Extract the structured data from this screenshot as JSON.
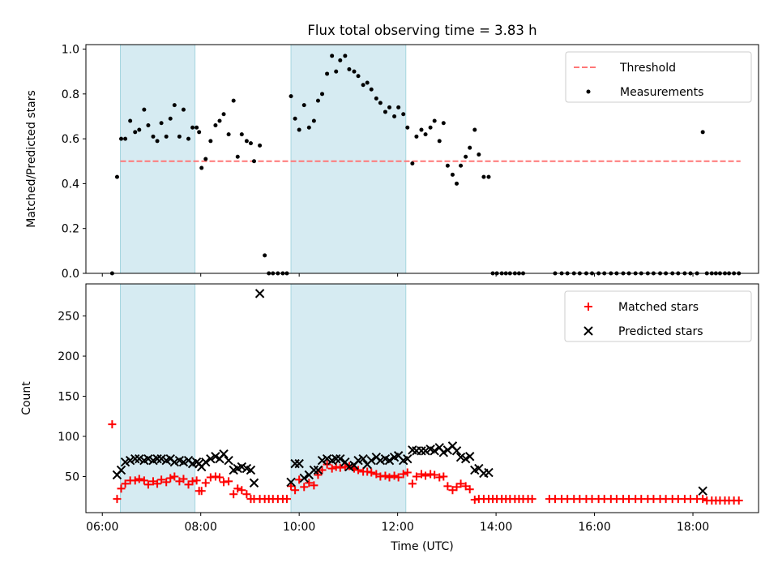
{
  "chart_data": [
    {
      "type": "scatter",
      "title": "Flux total observing time = 3.83 h",
      "xlabel": "",
      "ylabel": "Matched/Predicted stars",
      "xlim": [
        "05:40",
        "19:20"
      ],
      "ylim": [
        0,
        1.02
      ],
      "yticks": [
        "0.0",
        "0.2",
        "0.4",
        "0.6",
        "0.8",
        "1.0"
      ],
      "shaded_intervals": [
        [
          "06:22",
          "07:53"
        ],
        [
          "09:50",
          "12:10"
        ]
      ],
      "legend": {
        "position": "upper-right",
        "entries": [
          "Threshold",
          "Measurements"
        ]
      },
      "series": [
        {
          "name": "Threshold",
          "kind": "dashed-line",
          "color": "#ff7777",
          "x": [
            "06:22",
            "18:58"
          ],
          "y": [
            0.5,
            0.5
          ]
        },
        {
          "name": "Measurements",
          "kind": "dots",
          "color": "#000000",
          "x": [
            "06:12",
            "06:18",
            "06:23",
            "06:28",
            "06:34",
            "06:40",
            "06:45",
            "06:51",
            "06:56",
            "07:02",
            "07:07",
            "07:12",
            "07:18",
            "07:23",
            "07:28",
            "07:34",
            "07:39",
            "07:45",
            "07:50",
            "07:55",
            "07:58",
            "08:01",
            "08:06",
            "08:12",
            "08:18",
            "08:23",
            "08:28",
            "08:34",
            "08:40",
            "08:45",
            "08:50",
            "08:56",
            "09:01",
            "09:05",
            "09:12",
            "09:18",
            "09:23",
            "09:28",
            "09:34",
            "09:40",
            "09:45",
            "09:50",
            "09:55",
            "10:00",
            "10:06",
            "10:12",
            "10:18",
            "10:23",
            "10:28",
            "10:34",
            "10:40",
            "10:45",
            "10:50",
            "10:56",
            "11:01",
            "11:07",
            "11:12",
            "11:18",
            "11:23",
            "11:28",
            "11:34",
            "11:39",
            "11:45",
            "11:50",
            "11:56",
            "12:01",
            "12:07",
            "12:12",
            "12:18",
            "12:23",
            "12:29",
            "12:34",
            "12:40",
            "12:45",
            "12:51",
            "12:56",
            "13:01",
            "13:07",
            "13:12",
            "13:17",
            "13:23",
            "13:28",
            "13:34",
            "13:39",
            "13:45",
            "13:51",
            "13:56",
            "14:01",
            "14:07",
            "14:12",
            "14:17",
            "14:23",
            "14:28",
            "14:33",
            "15:12",
            "15:20",
            "15:27",
            "15:35",
            "15:42",
            "15:50",
            "15:57",
            "16:05",
            "16:12",
            "16:20",
            "16:27",
            "16:35",
            "16:42",
            "16:50",
            "16:57",
            "17:05",
            "17:12",
            "17:20",
            "17:27",
            "17:35",
            "17:42",
            "17:50",
            "17:57",
            "18:05",
            "18:12",
            "18:17",
            "18:23",
            "18:28",
            "18:33",
            "18:39",
            "18:44",
            "18:50",
            "18:56"
          ],
          "y": [
            0.0,
            0.43,
            0.6,
            0.6,
            0.68,
            0.63,
            0.64,
            0.73,
            0.66,
            0.61,
            0.59,
            0.67,
            0.61,
            0.69,
            0.75,
            0.61,
            0.73,
            0.6,
            0.65,
            0.65,
            0.63,
            0.47,
            0.51,
            0.59,
            0.66,
            0.68,
            0.71,
            0.62,
            0.77,
            0.52,
            0.62,
            0.59,
            0.58,
            0.5,
            0.57,
            0.08,
            0.0,
            0.0,
            0.0,
            0.0,
            0.0,
            0.79,
            0.69,
            0.64,
            0.75,
            0.65,
            0.68,
            0.77,
            0.8,
            0.89,
            0.97,
            0.9,
            0.95,
            0.97,
            0.91,
            0.9,
            0.88,
            0.84,
            0.85,
            0.82,
            0.78,
            0.76,
            0.72,
            0.74,
            0.7,
            0.74,
            0.71,
            0.65,
            0.49,
            0.61,
            0.64,
            0.62,
            0.65,
            0.68,
            0.59,
            0.67,
            0.48,
            0.44,
            0.4,
            0.48,
            0.52,
            0.56,
            0.64,
            0.53,
            0.43,
            0.43,
            0.0,
            0.0,
            0.0,
            0.0,
            0.0,
            0.0,
            0.0,
            0.0,
            0.0,
            0.0,
            0.0,
            0.0,
            0.0,
            0.0,
            0.0,
            0.0,
            0.0,
            0.0,
            0.0,
            0.0,
            0.0,
            0.0,
            0.0,
            0.0,
            0.0,
            0.0,
            0.0,
            0.0,
            0.0,
            0.0,
            0.0,
            0.0,
            0.63,
            0.0,
            0.0,
            0.0,
            0.0,
            0.0,
            0.0,
            0.0,
            0.0
          ]
        }
      ]
    },
    {
      "type": "scatter",
      "xlabel": "Time (UTC)",
      "ylabel": "Count",
      "xlim": [
        "05:40",
        "19:20"
      ],
      "ylim": [
        5,
        290
      ],
      "xticks": [
        "06:00",
        "08:00",
        "10:00",
        "12:00",
        "14:00",
        "16:00",
        "18:00"
      ],
      "yticks": [
        "50",
        "100",
        "150",
        "200",
        "250"
      ],
      "shaded_intervals": [
        [
          "06:22",
          "07:53"
        ],
        [
          "09:50",
          "12:10"
        ]
      ],
      "legend": {
        "position": "upper-right",
        "entries": [
          "Matched stars",
          "Predicted stars"
        ]
      },
      "series": [
        {
          "name": "Matched stars",
          "kind": "plus",
          "color": "#ff0000",
          "x": [
            "06:12",
            "06:18",
            "06:23",
            "06:28",
            "06:34",
            "06:40",
            "06:45",
            "06:51",
            "06:56",
            "07:02",
            "07:07",
            "07:12",
            "07:18",
            "07:23",
            "07:28",
            "07:34",
            "07:39",
            "07:45",
            "07:50",
            "07:55",
            "07:58",
            "08:01",
            "08:06",
            "08:12",
            "08:18",
            "08:23",
            "08:28",
            "08:34",
            "08:40",
            "08:45",
            "08:50",
            "08:56",
            "09:01",
            "09:05",
            "09:12",
            "09:18",
            "09:23",
            "09:28",
            "09:34",
            "09:40",
            "09:45",
            "09:50",
            "09:55",
            "10:00",
            "10:06",
            "10:12",
            "10:18",
            "10:23",
            "10:28",
            "10:34",
            "10:40",
            "10:45",
            "10:50",
            "10:56",
            "11:01",
            "11:07",
            "11:12",
            "11:18",
            "11:23",
            "11:28",
            "11:34",
            "11:39",
            "11:45",
            "11:50",
            "11:56",
            "12:01",
            "12:07",
            "12:12",
            "12:18",
            "12:23",
            "12:29",
            "12:34",
            "12:40",
            "12:45",
            "12:51",
            "12:56",
            "13:01",
            "13:07",
            "13:12",
            "13:17",
            "13:23",
            "13:28",
            "13:34",
            "13:39",
            "13:45",
            "13:51",
            "13:56",
            "14:01",
            "14:07",
            "14:12",
            "14:17",
            "14:23",
            "14:28",
            "14:33",
            "14:39",
            "14:44",
            "15:05",
            "15:12",
            "15:20",
            "15:27",
            "15:35",
            "15:42",
            "15:50",
            "15:57",
            "16:05",
            "16:12",
            "16:20",
            "16:27",
            "16:35",
            "16:42",
            "16:50",
            "16:57",
            "17:05",
            "17:12",
            "17:20",
            "17:27",
            "17:35",
            "17:42",
            "17:50",
            "17:57",
            "18:05",
            "18:12",
            "18:17",
            "18:23",
            "18:28",
            "18:33",
            "18:39",
            "18:44",
            "18:50",
            "18:56"
          ],
          "y": [
            115,
            22,
            35,
            41,
            45,
            45,
            47,
            45,
            40,
            44,
            41,
            46,
            43,
            48,
            50,
            44,
            47,
            40,
            44,
            45,
            32,
            32,
            42,
            49,
            50,
            49,
            43,
            44,
            28,
            35,
            33,
            28,
            22,
            22,
            22,
            22,
            22,
            22,
            22,
            22,
            22,
            38,
            33,
            46,
            37,
            42,
            39,
            52,
            58,
            65,
            60,
            62,
            61,
            62,
            63,
            60,
            58,
            56,
            56,
            55,
            53,
            50,
            51,
            49,
            51,
            49,
            53,
            55,
            41,
            50,
            53,
            51,
            53,
            52,
            49,
            50,
            38,
            33,
            37,
            41,
            38,
            34,
            21,
            22,
            22,
            22,
            22,
            22,
            22,
            22,
            22,
            22,
            22,
            22,
            22,
            22,
            22,
            22,
            22,
            22,
            22,
            22,
            22,
            22,
            22,
            22,
            22,
            22,
            22,
            22,
            22,
            22,
            22,
            22,
            22,
            22,
            22,
            22,
            22,
            22,
            22,
            22,
            20,
            20,
            20,
            20,
            20,
            20,
            20,
            20
          ]
        },
        {
          "name": "Predicted stars",
          "kind": "x",
          "color": "#000000",
          "x": [
            "06:18",
            "06:23",
            "06:28",
            "06:34",
            "06:40",
            "06:45",
            "06:51",
            "06:56",
            "07:02",
            "07:07",
            "07:12",
            "07:18",
            "07:23",
            "07:28",
            "07:34",
            "07:39",
            "07:45",
            "07:50",
            "07:55",
            "07:58",
            "08:01",
            "08:06",
            "08:12",
            "08:18",
            "08:23",
            "08:28",
            "08:34",
            "08:40",
            "08:45",
            "08:50",
            "08:56",
            "09:01",
            "09:05",
            "09:12",
            "09:50",
            "09:55",
            "10:00",
            "10:06",
            "10:12",
            "10:18",
            "10:23",
            "10:28",
            "10:34",
            "10:40",
            "10:45",
            "10:50",
            "10:56",
            "11:01",
            "11:07",
            "11:12",
            "11:18",
            "11:23",
            "11:28",
            "11:34",
            "11:39",
            "11:45",
            "11:50",
            "11:56",
            "12:01",
            "12:07",
            "12:12",
            "12:18",
            "12:23",
            "12:29",
            "12:34",
            "12:40",
            "12:45",
            "12:51",
            "12:56",
            "13:01",
            "13:07",
            "13:12",
            "13:17",
            "13:23",
            "13:28",
            "13:34",
            "13:39",
            "13:45",
            "13:51",
            "18:12"
          ],
          "y": [
            52,
            58,
            68,
            70,
            72,
            72,
            70,
            72,
            70,
            72,
            72,
            70,
            72,
            68,
            70,
            68,
            70,
            66,
            68,
            66,
            62,
            68,
            72,
            75,
            72,
            78,
            70,
            58,
            60,
            62,
            60,
            58,
            42,
            278,
            43,
            66,
            66,
            48,
            52,
            58,
            58,
            70,
            72,
            70,
            72,
            72,
            68,
            62,
            64,
            70,
            72,
            65,
            70,
            74,
            70,
            72,
            70,
            74,
            76,
            70,
            72,
            83,
            82,
            82,
            82,
            84,
            82,
            86,
            80,
            83,
            88,
            82,
            74,
            72,
            75,
            58,
            60,
            54,
            55,
            32
          ]
        }
      ]
    }
  ]
}
